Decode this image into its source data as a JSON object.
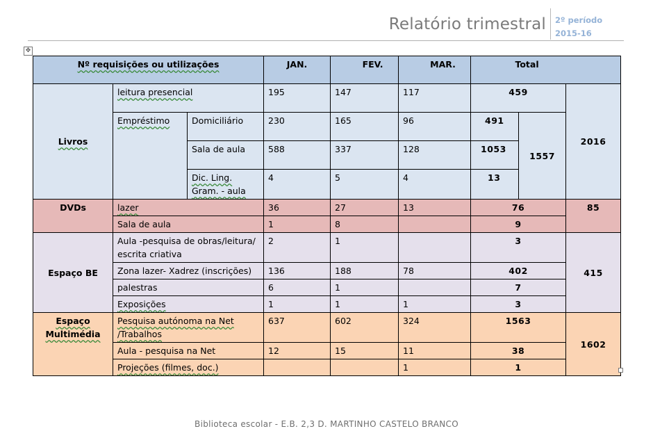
{
  "header": {
    "title": "Relatório trimestral",
    "period_line1": "2º período",
    "period_line2": "2015-16"
  },
  "table": {
    "head": {
      "col_label": "Nº requisições ou utilizações",
      "jan": "JAN.",
      "fev": "FEV.",
      "mar": "MAR.",
      "total": "Total"
    },
    "livros": {
      "label": "Livros",
      "group_total": "2016",
      "leitura": {
        "label": "leitura presencial",
        "jan": "195",
        "fev": "147",
        "mar": "117",
        "total": "459"
      },
      "emprestimo_label": "Empréstimo",
      "emprestimo_total": "1557",
      "domiciliario": {
        "label": "Domiciliário",
        "jan": "230",
        "fev": "165",
        "mar": "96",
        "total": "491"
      },
      "sala": {
        "label": "Sala de aula",
        "jan": "588",
        "fev": "337",
        "mar": "128",
        "total": "1053"
      },
      "dic": {
        "label": "Dic. Ling. Gram. - aula",
        "jan": "4",
        "fev": "5",
        "mar": "4",
        "total": "13"
      }
    },
    "dvds": {
      "label": "DVDs",
      "group_total": "85",
      "lazer": {
        "label": "lazer",
        "jan": "36",
        "fev": "27",
        "mar": "13",
        "total": "76"
      },
      "sala": {
        "label": "Sala de aula",
        "jan": "1",
        "fev": "8",
        "mar": "",
        "total": "9"
      }
    },
    "espaco_be": {
      "label": "Espaço BE",
      "group_total": "415",
      "aula": {
        "label": "Aula -pesquisa de obras/leitura/ escrita criativa",
        "jan": "2",
        "fev": "1",
        "mar": "",
        "total": "3"
      },
      "zona": {
        "label": "Zona lazer- Xadrez (inscrições)",
        "jan": "136",
        "fev": "188",
        "mar": "78",
        "total": "402"
      },
      "palestras": {
        "label": "palestras",
        "jan": "6",
        "fev": "1",
        "mar": "",
        "total": "7"
      },
      "exposicoes": {
        "label": "Exposições",
        "jan": "1",
        "fev": "1",
        "mar": "1",
        "total": "3"
      }
    },
    "multimedia": {
      "label": "Espaço Multimédia",
      "group_total": "1602",
      "pesquisa": {
        "label": "Pesquisa autónoma na Net /Trabalhos",
        "jan": "637",
        "fev": "602",
        "mar": "324",
        "total": "1563"
      },
      "aula": {
        "label": "Aula - pesquisa na Net",
        "jan": "12",
        "fev": "15",
        "mar": "11",
        "total": "38"
      },
      "projecoes": {
        "label": "Projeções (filmes, doc.)",
        "jan": "",
        "fev": "",
        "mar": "1",
        "total": "1"
      }
    }
  },
  "footer": {
    "text": "Biblioteca escolar - E.B. 2,3 D. MARTINHO CASTELO BRANCO"
  }
}
